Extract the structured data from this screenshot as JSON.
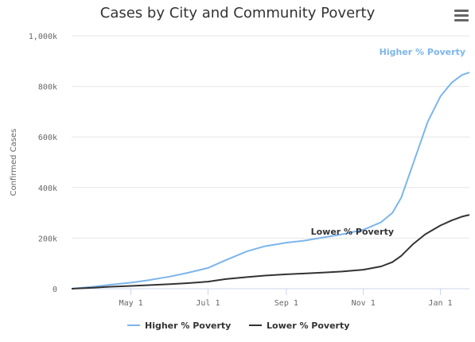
{
  "title": "Cases by City and Community Poverty",
  "menu_icon": "hamburger-menu-icon",
  "chart_data": {
    "type": "line",
    "ylabel": "Confirmed Cases",
    "ylim": [
      0,
      1000000
    ],
    "y_ticks": [
      0,
      200000,
      400000,
      600000,
      800000,
      1000000
    ],
    "y_tick_labels": [
      "0",
      "200k",
      "400k",
      "600k",
      "800k",
      "1,000k"
    ],
    "x_range": [
      "2020-03-15",
      "2021-01-24"
    ],
    "x_ticks": [
      "2020-05-01",
      "2020-07-01",
      "2020-09-01",
      "2020-11-01",
      "2021-01-01"
    ],
    "x_tick_labels": [
      "May 1",
      "Jul 1",
      "Sep 1",
      "Nov 1",
      "Jan 1"
    ],
    "legend_position": "bottom-center",
    "series": [
      {
        "name": "Higher % Poverty",
        "color": "#7cb5ec",
        "points": [
          [
            "2020-03-15",
            0
          ],
          [
            "2020-04-01",
            8000
          ],
          [
            "2020-04-15",
            16000
          ],
          [
            "2020-05-01",
            24000
          ],
          [
            "2020-05-15",
            34000
          ],
          [
            "2020-06-01",
            48000
          ],
          [
            "2020-06-15",
            63000
          ],
          [
            "2020-07-01",
            82000
          ],
          [
            "2020-07-15",
            113000
          ],
          [
            "2020-08-01",
            148000
          ],
          [
            "2020-08-15",
            168000
          ],
          [
            "2020-09-01",
            182000
          ],
          [
            "2020-09-15",
            190000
          ],
          [
            "2020-10-01",
            203000
          ],
          [
            "2020-10-15",
            215000
          ],
          [
            "2020-11-01",
            233000
          ],
          [
            "2020-11-15",
            263000
          ],
          [
            "2020-11-24",
            300000
          ],
          [
            "2020-12-01",
            360000
          ],
          [
            "2020-12-08",
            460000
          ],
          [
            "2020-12-15",
            560000
          ],
          [
            "2020-12-22",
            660000
          ],
          [
            "2021-01-01",
            760000
          ],
          [
            "2021-01-10",
            815000
          ],
          [
            "2021-01-18",
            845000
          ],
          [
            "2021-01-24",
            855000
          ]
        ]
      },
      {
        "name": "Lower % Poverty",
        "color": "#333333",
        "points": [
          [
            "2020-03-15",
            0
          ],
          [
            "2020-04-01",
            4000
          ],
          [
            "2020-04-15",
            8000
          ],
          [
            "2020-05-01",
            11000
          ],
          [
            "2020-05-15",
            14000
          ],
          [
            "2020-06-01",
            18000
          ],
          [
            "2020-06-15",
            22000
          ],
          [
            "2020-07-01",
            28000
          ],
          [
            "2020-07-15",
            38000
          ],
          [
            "2020-08-01",
            46000
          ],
          [
            "2020-08-15",
            52000
          ],
          [
            "2020-09-01",
            57000
          ],
          [
            "2020-09-15",
            60000
          ],
          [
            "2020-10-01",
            64000
          ],
          [
            "2020-10-15",
            68000
          ],
          [
            "2020-11-01",
            75000
          ],
          [
            "2020-11-15",
            88000
          ],
          [
            "2020-11-24",
            105000
          ],
          [
            "2020-12-01",
            130000
          ],
          [
            "2020-12-10",
            175000
          ],
          [
            "2020-12-20",
            215000
          ],
          [
            "2021-01-01",
            250000
          ],
          [
            "2021-01-10",
            270000
          ],
          [
            "2021-01-18",
            285000
          ],
          [
            "2021-01-24",
            292000
          ]
        ]
      }
    ],
    "annotations": [
      {
        "text": "Higher % Poverty",
        "series": 0,
        "color": "#7cb5ec"
      },
      {
        "text": "Lower % Poverty",
        "series": 1,
        "color": "#333333"
      }
    ]
  }
}
